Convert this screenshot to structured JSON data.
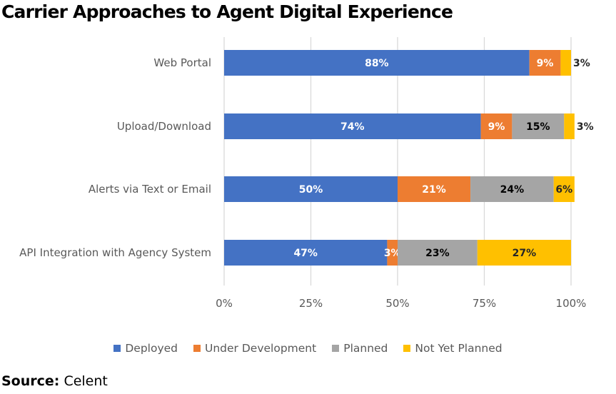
{
  "chart_data": {
    "type": "bar",
    "orientation": "horizontal",
    "stacked": "percent",
    "title": "Carrier Approaches to Agent Digital Experience",
    "xlabel": "",
    "ylabel": "",
    "xlim": [
      0,
      100
    ],
    "x_ticks": [
      "0%",
      "25%",
      "50%",
      "75%",
      "100%"
    ],
    "grid": "vertical",
    "legend_position": "bottom",
    "categories": [
      "Web Portal",
      "Upload/Download",
      "Alerts via Text or Email",
      "API Integration with Agency System"
    ],
    "series": [
      {
        "name": "Deployed",
        "color": "#4472C4",
        "label_color": "#ffffff",
        "values": [
          88,
          74,
          50,
          47
        ],
        "labels": [
          "88%",
          "74%",
          "50%",
          "47%"
        ]
      },
      {
        "name": "Under Development",
        "color": "#ED7D31",
        "label_color": "#ffffff",
        "values": [
          9,
          9,
          21,
          3
        ],
        "labels": [
          "9%",
          "9%",
          "21%",
          "3%"
        ]
      },
      {
        "name": "Planned",
        "color": "#A5A5A5",
        "label_color": "#000000",
        "values": [
          0,
          15,
          24,
          23
        ],
        "labels": [
          "",
          "15%",
          "24%",
          "23%"
        ]
      },
      {
        "name": "Not Yet Planned",
        "color": "#FFC000",
        "label_color": "#262626",
        "values": [
          3,
          3,
          6,
          27
        ],
        "labels": [
          "3%",
          "3%",
          "6%",
          "27%"
        ]
      }
    ]
  },
  "source": {
    "label": "Source:",
    "value": "Celent"
  }
}
